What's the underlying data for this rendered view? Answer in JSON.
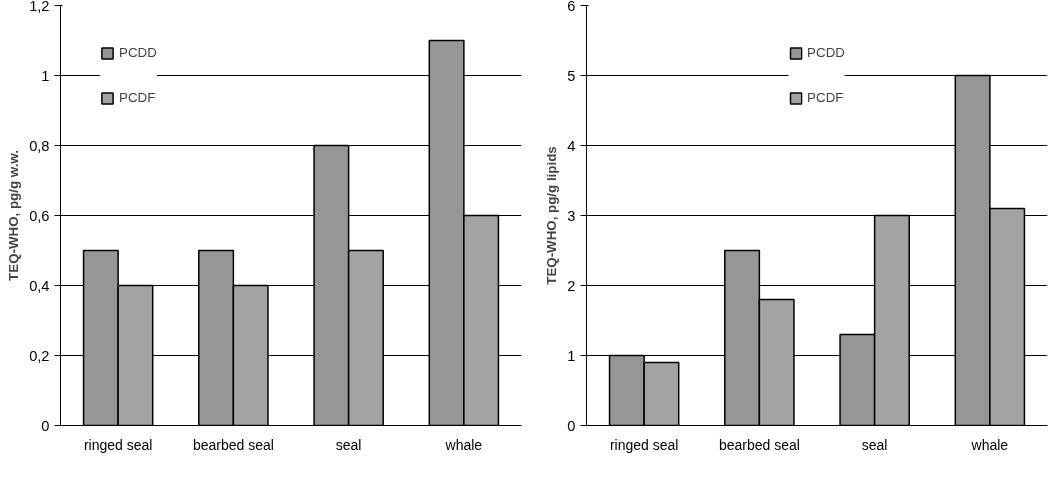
{
  "chart_data": [
    {
      "type": "bar",
      "ylabel": "TEQ-WHO, pg/g w.w.",
      "categories": [
        "ringed seal",
        "bearbed seal",
        "seal",
        "whale"
      ],
      "series": [
        {
          "name": "PCDD",
          "color": "#969696",
          "values": [
            0.5,
            0.5,
            0.8,
            1.1
          ]
        },
        {
          "name": "PCDF",
          "color": "#a3a3a3",
          "values": [
            0.4,
            0.4,
            0.5,
            0.6
          ]
        }
      ],
      "ylim": [
        0,
        1.2
      ],
      "yticks": [
        0,
        {
          "value": 0.2,
          "label": "0,2"
        },
        {
          "value": 0.4,
          "label": "0,4"
        },
        {
          "value": 0.6,
          "label": "0,6"
        },
        {
          "value": 0.8,
          "label": "0,8"
        },
        1,
        {
          "value": 1.2,
          "label": "1,2"
        }
      ],
      "grid": "y",
      "legend": "top left"
    },
    {
      "type": "bar",
      "ylabel": "TEQ-WHO, pg/g lipids",
      "categories": [
        "ringed seal",
        "bearbed seal",
        "seal",
        "whale"
      ],
      "series": [
        {
          "name": "PCDD",
          "color": "#969696",
          "values": [
            1,
            2.5,
            1.3,
            5
          ]
        },
        {
          "name": "PCDF",
          "color": "#a3a3a3",
          "values": [
            0.9,
            1.8,
            3,
            3.1
          ]
        }
      ],
      "ylim": [
        0,
        6
      ],
      "yticks": [
        0,
        1,
        2,
        3,
        4,
        5,
        6
      ],
      "grid": "y",
      "legend": "top"
    }
  ]
}
